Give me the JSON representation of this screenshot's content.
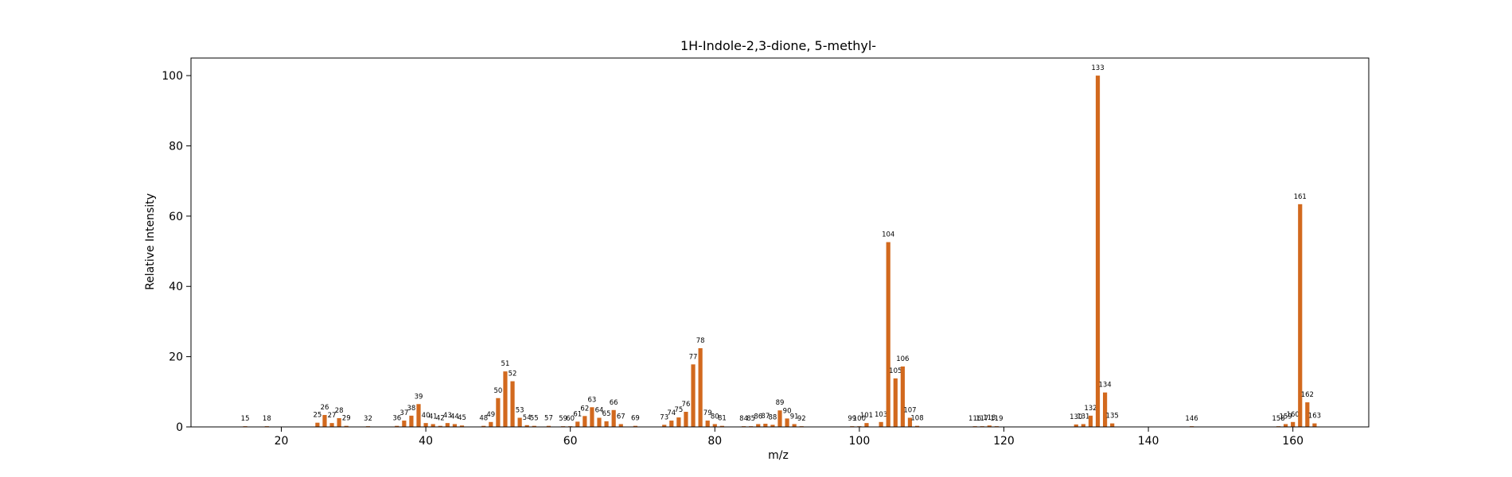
{
  "chart_data": {
    "type": "bar",
    "title": "1H-Indole-2,3-dione, 5-methyl-",
    "xlabel": "m/z",
    "ylabel": "Relative Intensity",
    "xlim": [
      7.5,
      170.5
    ],
    "ylim": [
      0,
      105
    ],
    "xticks": [
      20,
      40,
      60,
      80,
      100,
      120,
      140,
      160
    ],
    "yticks": [
      0,
      20,
      40,
      60,
      80,
      100
    ],
    "grid": false,
    "legend": "none",
    "bar_color": "#d2691e",
    "x": [
      15,
      18,
      25,
      26,
      27,
      28,
      29,
      32,
      36,
      37,
      38,
      39,
      40,
      41,
      42,
      43,
      44,
      45,
      48,
      49,
      50,
      51,
      52,
      53,
      54,
      55,
      57,
      59,
      60,
      61,
      62,
      63,
      64,
      65,
      66,
      67,
      69,
      73,
      74,
      75,
      76,
      77,
      78,
      79,
      80,
      81,
      84,
      85,
      86,
      87,
      88,
      89,
      90,
      91,
      92,
      99,
      100,
      101,
      103,
      104,
      105,
      106,
      107,
      108,
      116,
      117,
      118,
      119,
      130,
      131,
      132,
      133,
      134,
      135,
      146,
      158,
      159,
      160,
      161,
      162,
      163
    ],
    "y": [
      0.2,
      0.2,
      1.2,
      3.4,
      1.1,
      2.5,
      0.3,
      0.2,
      0.3,
      1.8,
      3.2,
      6.5,
      1.1,
      0.8,
      0.3,
      1.1,
      0.8,
      0.4,
      0.3,
      1.4,
      8.2,
      15.8,
      13.0,
      2.6,
      0.5,
      0.3,
      0.3,
      0.2,
      0.2,
      1.5,
      3.1,
      5.6,
      2.6,
      1.6,
      4.8,
      0.8,
      0.3,
      0.6,
      1.8,
      2.7,
      4.3,
      17.8,
      22.4,
      1.8,
      0.8,
      0.3,
      0.2,
      0.2,
      0.8,
      0.9,
      0.6,
      4.7,
      2.4,
      0.8,
      0.2,
      0.2,
      0.2,
      1.1,
      1.4,
      52.6,
      13.8,
      17.2,
      2.6,
      0.3,
      0.2,
      0.2,
      0.4,
      0.2,
      0.7,
      0.8,
      3.2,
      100.0,
      9.8,
      1.0,
      0.2,
      0.2,
      0.8,
      1.4,
      63.4,
      7.0,
      1.0
    ]
  }
}
